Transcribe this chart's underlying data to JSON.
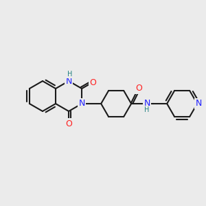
{
  "background_color": "#ebebeb",
  "bond_color": "#1a1a1a",
  "bond_width": 1.5,
  "atom_colors": {
    "N": "#2020ff",
    "O": "#ff2020",
    "H_on_N": "#208080",
    "C": "#1a1a1a"
  },
  "font_size_atom": 9,
  "font_size_H": 7
}
